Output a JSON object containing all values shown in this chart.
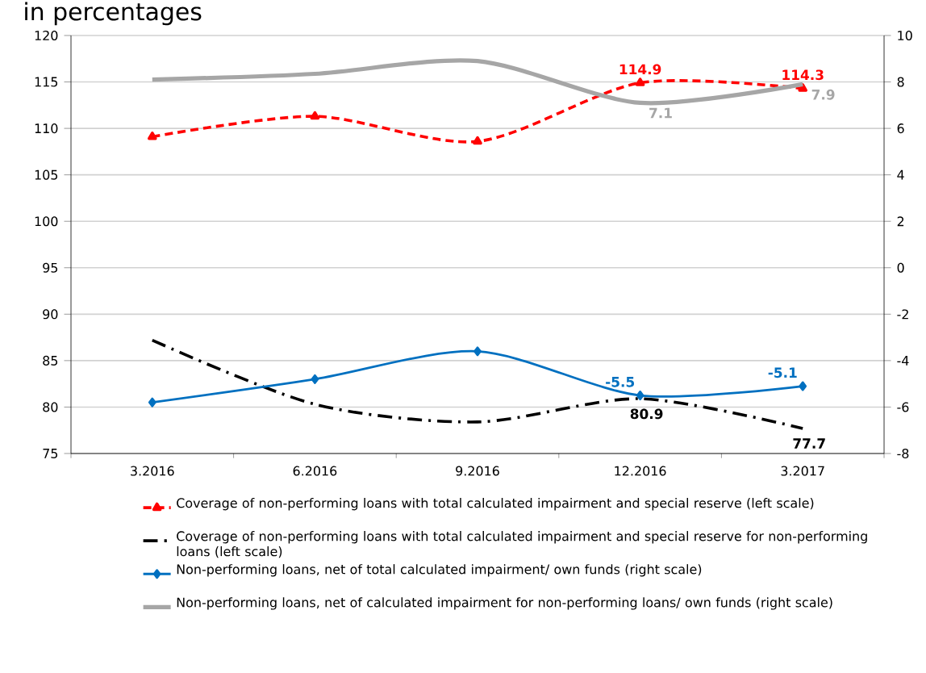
{
  "chart_data": {
    "type": "line",
    "title": "in percentages",
    "categories": [
      "3.2016",
      "6.2016",
      "9.2016",
      "12.2016",
      "3.2017"
    ],
    "series": [
      {
        "name": "Coverage of non-performing loans with total calculated impairment and special reserve (left scale)",
        "color": "#ff0000",
        "values": [
          109.1,
          111.3,
          108.6,
          114.9,
          114.3
        ],
        "value_labels": [
          null,
          null,
          null,
          "114.9",
          "114.3"
        ],
        "marker": "triangle",
        "line_style": "dashed"
      },
      {
        "name": "Coverage of non-performing loans with total calculated impairment and special reserve for non-performing loans (left scale)",
        "color": "#000000",
        "values": [
          87.2,
          80.3,
          78.4,
          80.9,
          77.7
        ],
        "value_labels": [
          null,
          null,
          null,
          "80.9",
          "77.7"
        ],
        "marker": "none",
        "line_style": "dashdot"
      },
      {
        "name": "Non-performing loans, net of total calculated impairment/ own funds (right scale)",
        "color": "#0070c0",
        "values": [
          -5.8,
          -4.8,
          -3.6,
          -5.5,
          -5.1
        ],
        "value_labels": [
          null,
          null,
          null,
          "-5.5",
          "-5.1"
        ],
        "marker": "diamond",
        "line_style": "solid",
        "axis": "y2"
      },
      {
        "name": "Non-performing loans, net of calculated impairment for non-performing loans/ own funds (right scale)",
        "color": "#a6a6a6",
        "values": [
          8.1,
          8.35,
          8.9,
          7.1,
          7.9
        ],
        "value_labels": [
          null,
          null,
          null,
          "7.1",
          "7.9"
        ],
        "marker": "none",
        "line_style": "solid",
        "axis": "y2"
      }
    ],
    "ylim": [
      75,
      120
    ],
    "yticks": [
      75,
      80,
      85,
      90,
      95,
      100,
      105,
      110,
      115,
      120
    ],
    "y2lim": [
      -8,
      10
    ],
    "y2ticks": [
      -8,
      -6,
      -4,
      -2,
      0,
      2,
      4,
      6,
      8,
      10
    ],
    "grid": "y",
    "legend": "bottom"
  }
}
